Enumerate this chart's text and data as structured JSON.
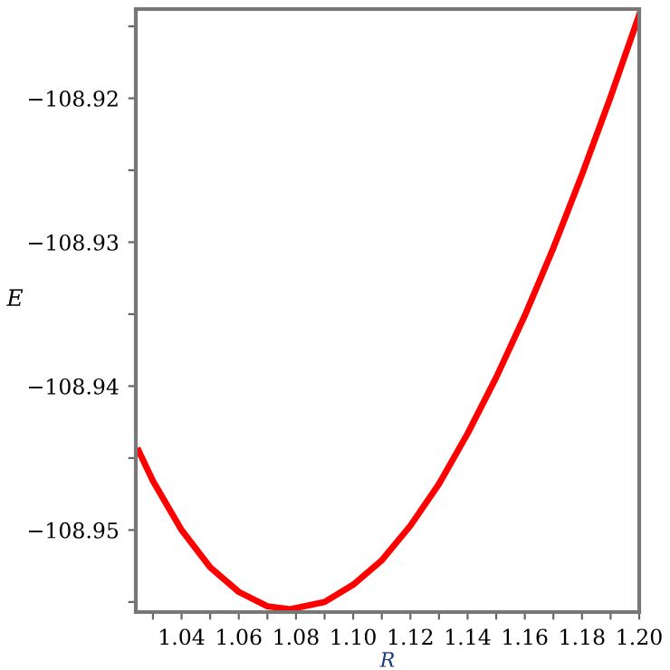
{
  "chart_data": {
    "type": "line",
    "xlabel": "R",
    "ylabel": "E",
    "x": [
      1.025,
      1.03,
      1.04,
      1.05,
      1.06,
      1.07,
      1.078,
      1.09,
      1.1,
      1.11,
      1.12,
      1.13,
      1.14,
      1.15,
      1.16,
      1.17,
      1.18,
      1.19,
      1.2
    ],
    "series": [
      {
        "color": "#ff0000",
        "values": [
          -108.9445,
          -108.9466,
          -108.95,
          -108.9526,
          -108.9543,
          -108.9553,
          -108.9555,
          -108.955,
          -108.9538,
          -108.9521,
          -108.9497,
          -108.9468,
          -108.9433,
          -108.9394,
          -108.9351,
          -108.9304,
          -108.9253,
          -108.9199,
          -108.9142
        ]
      }
    ],
    "xlim": [
      1.024,
      1.2
    ],
    "ylim": [
      -108.9557,
      -108.9138
    ],
    "xticks": [
      {
        "value": 1.03,
        "label": null
      },
      {
        "value": 1.04,
        "label": "1.04"
      },
      {
        "value": 1.05,
        "label": null
      },
      {
        "value": 1.06,
        "label": "1.06"
      },
      {
        "value": 1.07,
        "label": null
      },
      {
        "value": 1.08,
        "label": "1.08"
      },
      {
        "value": 1.09,
        "label": null
      },
      {
        "value": 1.1,
        "label": "1.10"
      },
      {
        "value": 1.11,
        "label": null
      },
      {
        "value": 1.12,
        "label": "1.12"
      },
      {
        "value": 1.13,
        "label": null
      },
      {
        "value": 1.14,
        "label": "1.14"
      },
      {
        "value": 1.15,
        "label": null
      },
      {
        "value": 1.16,
        "label": "1.16"
      },
      {
        "value": 1.17,
        "label": null
      },
      {
        "value": 1.18,
        "label": "1.18"
      },
      {
        "value": 1.19,
        "label": null
      },
      {
        "value": 1.2,
        "label": "1.20"
      }
    ],
    "yticks": [
      {
        "value": -108.955,
        "label": null
      },
      {
        "value": -108.95,
        "label": "−108.95"
      },
      {
        "value": -108.945,
        "label": null
      },
      {
        "value": -108.94,
        "label": "−108.94"
      },
      {
        "value": -108.935,
        "label": null
      },
      {
        "value": -108.93,
        "label": "−108.93"
      },
      {
        "value": -108.925,
        "label": null
      },
      {
        "value": -108.92,
        "label": "−108.92"
      },
      {
        "value": -108.915,
        "label": null
      }
    ],
    "grid": false,
    "legend": false,
    "marker": "none",
    "line_style": "solid"
  }
}
